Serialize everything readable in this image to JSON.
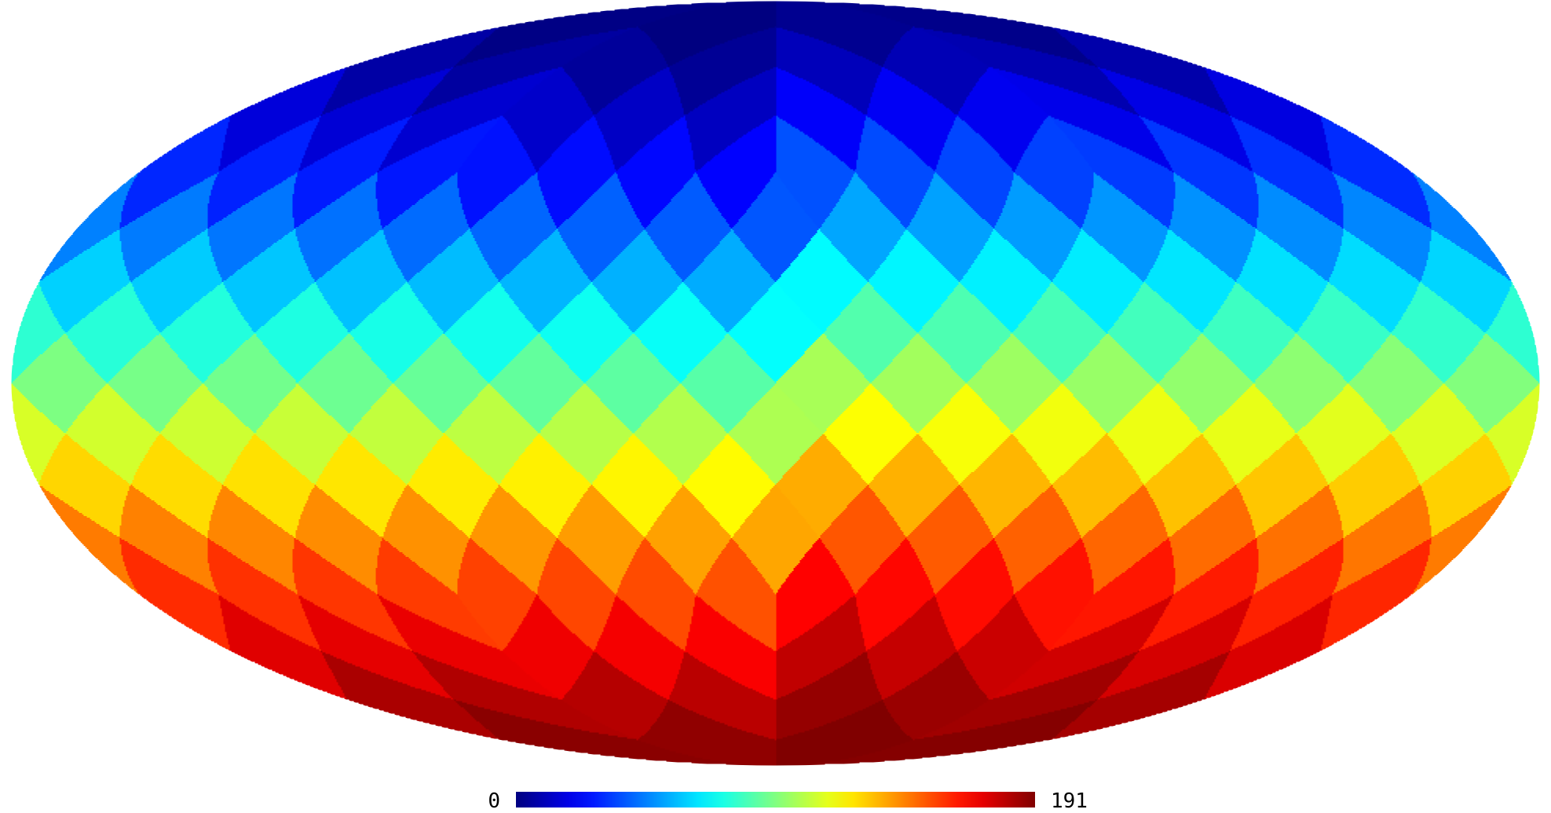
{
  "chart_data": {
    "type": "heatmap",
    "projection": "mollweide",
    "pixelization": "healpix",
    "nside": 4,
    "ordering": "ring",
    "pixel_count": 192,
    "value_rule": "pixel index",
    "colormap": "jet",
    "colorbar": {
      "min_label": "0",
      "max_label": "191",
      "range": [
        0,
        191
      ],
      "placement": "bottom-center"
    }
  }
}
